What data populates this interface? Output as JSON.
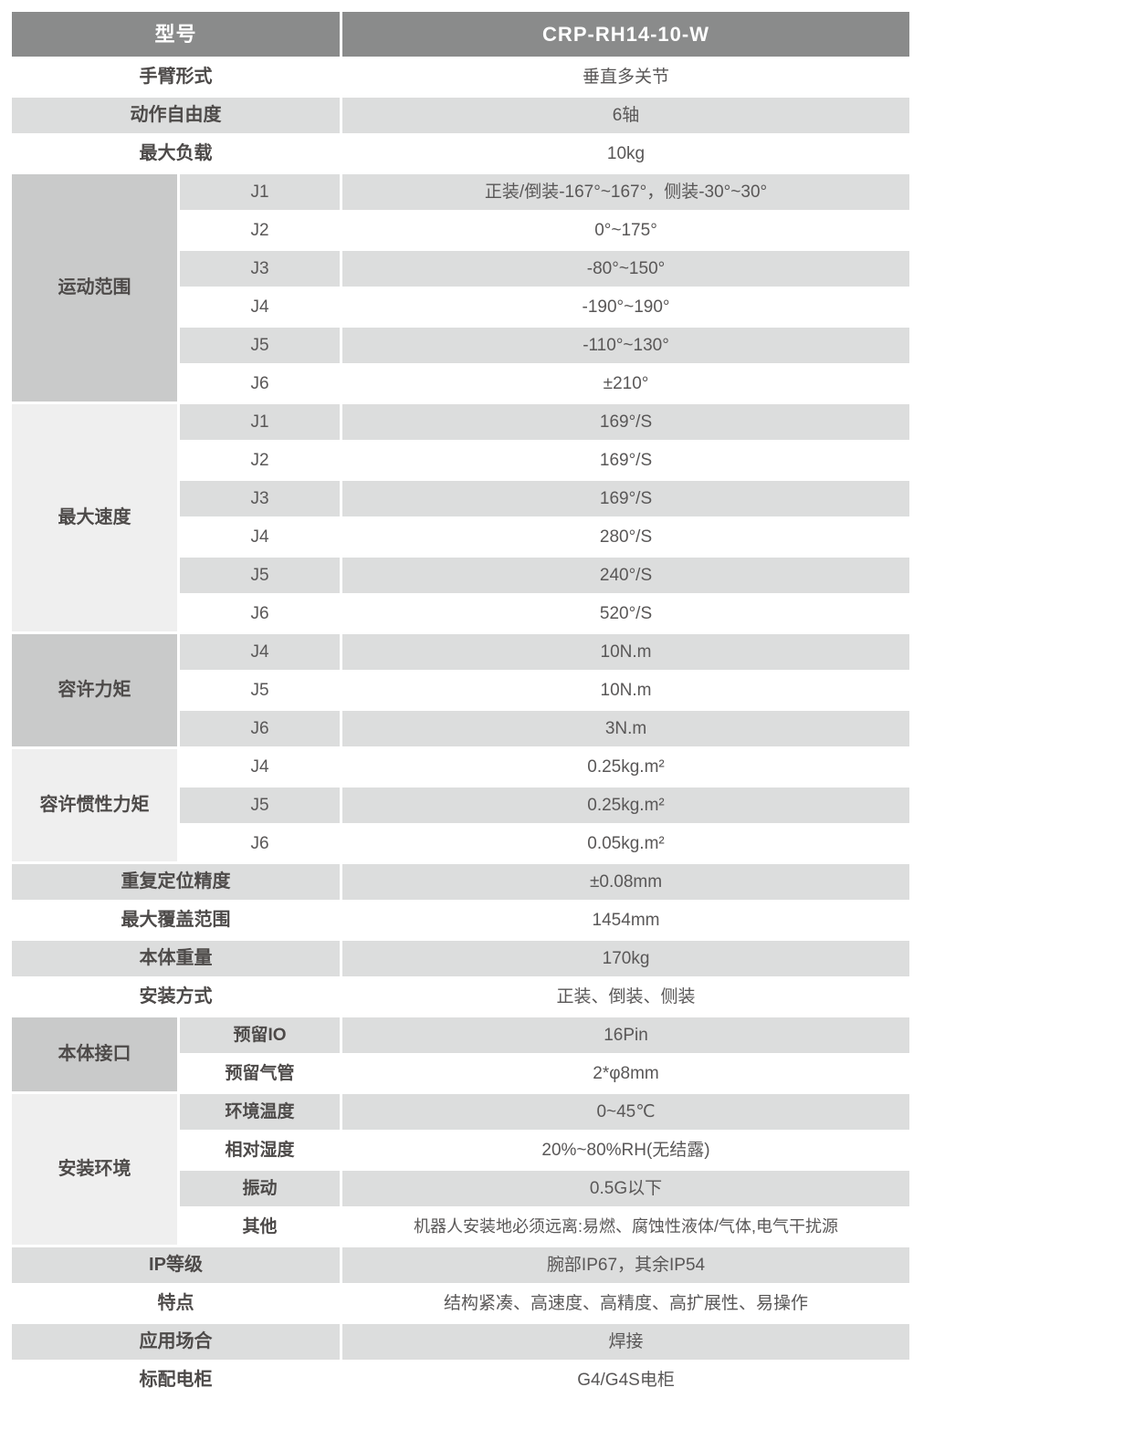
{
  "colors": {
    "header_bg": "#8a8b8b",
    "header_text": "#ffffff",
    "stripe_gray": "#dcdddd",
    "group_dark": "#c9caca",
    "group_light": "#efefef",
    "body_text": "#595757"
  },
  "header": {
    "label": "型号",
    "value": "CRP-RH14-10-W"
  },
  "rows_top": [
    {
      "label": "手臂形式",
      "value": "垂直多关节"
    },
    {
      "label": "动作自由度",
      "value": "6轴"
    },
    {
      "label": "最大负载",
      "value": "10kg"
    }
  ],
  "groups": [
    {
      "label": "运动范围",
      "rows": [
        {
          "sub": "J1",
          "value": "正装/倒装-167°~167°，侧装-30°~30°"
        },
        {
          "sub": "J2",
          "value": "0°~175°"
        },
        {
          "sub": "J3",
          "value": "-80°~150°"
        },
        {
          "sub": "J4",
          "value": "-190°~190°"
        },
        {
          "sub": "J5",
          "value": "-110°~130°"
        },
        {
          "sub": "J6",
          "value": "±210°"
        }
      ]
    },
    {
      "label": "最大速度",
      "rows": [
        {
          "sub": "J1",
          "value": "169°/S"
        },
        {
          "sub": "J2",
          "value": "169°/S"
        },
        {
          "sub": "J3",
          "value": "169°/S"
        },
        {
          "sub": "J4",
          "value": "280°/S"
        },
        {
          "sub": "J5",
          "value": "240°/S"
        },
        {
          "sub": "J6",
          "value": "520°/S"
        }
      ]
    },
    {
      "label": "容许力矩",
      "rows": [
        {
          "sub": "J4",
          "value": "10N.m"
        },
        {
          "sub": "J5",
          "value": "10N.m"
        },
        {
          "sub": "J6",
          "value": "3N.m"
        }
      ]
    },
    {
      "label": "容许惯性力矩",
      "rows": [
        {
          "sub": "J4",
          "value": "0.25kg.m²"
        },
        {
          "sub": "J5",
          "value": "0.25kg.m²"
        },
        {
          "sub": "J6",
          "value": "0.05kg.m²"
        }
      ]
    }
  ],
  "rows_mid": [
    {
      "label": "重复定位精度",
      "value": "±0.08mm"
    },
    {
      "label": "最大覆盖范围",
      "value": "1454mm"
    },
    {
      "label": "本体重量",
      "value": "170kg"
    },
    {
      "label": "安装方式",
      "value": "正装、倒装、侧装"
    }
  ],
  "groups2": [
    {
      "label": "本体接口",
      "rows": [
        {
          "sub": "预留IO",
          "value": "16Pin"
        },
        {
          "sub": "预留气管",
          "value": "2*φ8mm"
        }
      ]
    },
    {
      "label": "安装环境",
      "rows": [
        {
          "sub": "环境温度",
          "value": "0~45℃"
        },
        {
          "sub": "相对湿度",
          "value": "20%~80%RH(无结露)"
        },
        {
          "sub": "振动",
          "value": "0.5G以下"
        },
        {
          "sub": "其他",
          "value": "机器人安装地必须远离:易燃、腐蚀性液体/气体,电气干扰源"
        }
      ]
    }
  ],
  "rows_bottom": [
    {
      "label": "IP等级",
      "value": "腕部IP67，其余IP54"
    },
    {
      "label": "特点",
      "value": "结构紧凑、高速度、高精度、高扩展性、易操作"
    },
    {
      "label": "应用场合",
      "value": "焊接"
    },
    {
      "label": "标配电柜",
      "value": "G4/G4S电柜"
    }
  ]
}
